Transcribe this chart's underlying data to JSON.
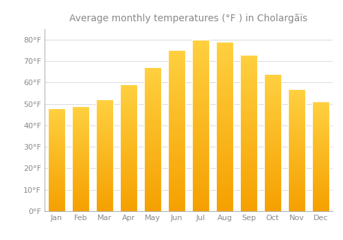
{
  "months": [
    "Jan",
    "Feb",
    "Mar",
    "Apr",
    "May",
    "Jun",
    "Jul",
    "Aug",
    "Sep",
    "Oct",
    "Nov",
    "Dec"
  ],
  "values": [
    48,
    49,
    52,
    59,
    67,
    75,
    80,
    79,
    73,
    64,
    57,
    51
  ],
  "bar_color_top": "#FFC200",
  "bar_color_bottom": "#F5A800",
  "bar_edge_color": "#DDDDDD",
  "background_color": "#FFFFFF",
  "grid_color": "#DDDDDD",
  "title": "Average monthly temperatures (°F ) in Cholargãïs",
  "ylabel_ticks": [
    0,
    10,
    20,
    30,
    40,
    50,
    60,
    70,
    80
  ],
  "ylim": [
    0,
    85
  ],
  "title_fontsize": 10,
  "tick_fontsize": 8,
  "font_color": "#888888",
  "bar_width": 0.7
}
